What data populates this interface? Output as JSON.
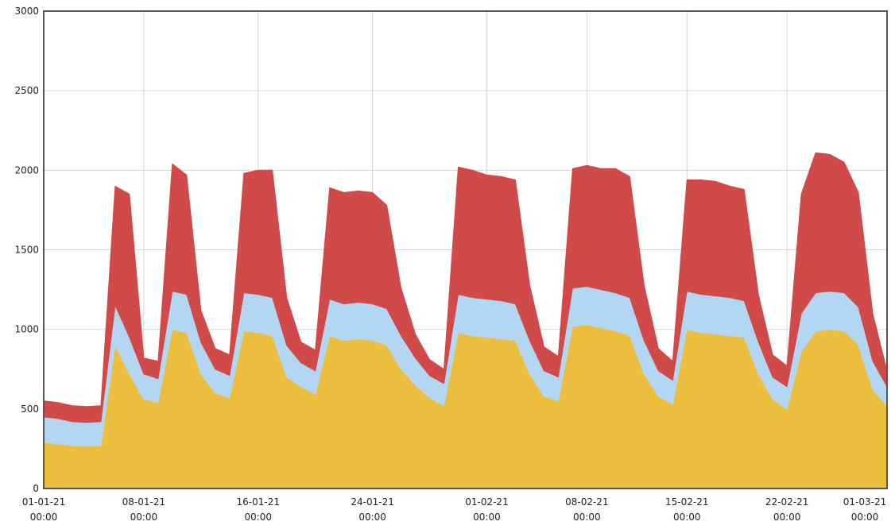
{
  "chart_data": {
    "type": "area",
    "stacked": true,
    "title": "",
    "xlabel": "",
    "ylabel": "",
    "ylim": [
      0,
      3000
    ],
    "yticks": [
      "0",
      "500",
      "1000",
      "1500",
      "2000",
      "2500",
      "3000"
    ],
    "xticks": [
      {
        "date": "01-01-21",
        "time": "00:00"
      },
      {
        "date": "08-01-21",
        "time": "00:00"
      },
      {
        "date": "16-01-21",
        "time": "00:00"
      },
      {
        "date": "24-01-21",
        "time": "00:00"
      },
      {
        "date": "01-02-21",
        "time": "00:00"
      },
      {
        "date": "08-02-21",
        "time": "00:00"
      },
      {
        "date": "15-02-21",
        "time": "00:00"
      },
      {
        "date": "22-02-21",
        "time": "00:00"
      },
      {
        "date": "01-03-21",
        "time": "00:00"
      }
    ],
    "grid": true,
    "x": [
      "01-01-21",
      "02-01-21",
      "03-01-21",
      "04-01-21",
      "05-01-21",
      "06-01-21",
      "07-01-21",
      "08-01-21",
      "09-01-21",
      "10-01-21",
      "11-01-21",
      "12-01-21",
      "13-01-21",
      "14-01-21",
      "15-01-21",
      "16-01-21",
      "17-01-21",
      "18-01-21",
      "19-01-21",
      "20-01-21",
      "21-01-21",
      "22-01-21",
      "23-01-21",
      "24-01-21",
      "25-01-21",
      "26-01-21",
      "27-01-21",
      "28-01-21",
      "29-01-21",
      "30-01-21",
      "31-01-21",
      "01-02-21",
      "02-02-21",
      "03-02-21",
      "04-02-21",
      "05-02-21",
      "06-02-21",
      "07-02-21",
      "08-02-21",
      "09-02-21",
      "10-02-21",
      "11-02-21",
      "12-02-21",
      "13-02-21",
      "14-02-21",
      "15-02-21",
      "16-02-21",
      "17-02-21",
      "18-02-21",
      "19-02-21",
      "20-02-21",
      "21-02-21",
      "22-02-21",
      "23-02-21",
      "24-02-21",
      "25-02-21",
      "26-02-21",
      "27-02-21",
      "28-02-21",
      "01-03-21"
    ],
    "series": [
      {
        "color": "#ebbe3e",
        "values": [
          290,
          280,
          270,
          265,
          270,
          900,
          720,
          560,
          540,
          1000,
          980,
          720,
          600,
          570,
          990,
          980,
          960,
          700,
          640,
          590,
          960,
          930,
          940,
          930,
          900,
          750,
          650,
          570,
          520,
          980,
          960,
          950,
          940,
          930,
          720,
          580,
          550,
          1020,
          1030,
          1010,
          990,
          960,
          720,
          580,
          530,
          1000,
          980,
          970,
          960,
          950,
          720,
          560,
          500,
          860,
          990,
          1000,
          990,
          900,
          620,
          520
        ]
      },
      {
        "color": "#b3d7f2",
        "values": [
          160,
          160,
          150,
          150,
          150,
          250,
          230,
          160,
          150,
          240,
          240,
          200,
          150,
          140,
          240,
          240,
          240,
          200,
          150,
          150,
          230,
          230,
          230,
          230,
          230,
          210,
          170,
          140,
          140,
          240,
          240,
          240,
          240,
          230,
          210,
          160,
          150,
          240,
          240,
          240,
          240,
          240,
          210,
          160,
          150,
          240,
          240,
          240,
          240,
          230,
          200,
          140,
          140,
          240,
          240,
          240,
          240,
          240,
          180,
          120
        ]
      },
      {
        "color": "#d04a4a",
        "values": [
          100,
          100,
          100,
          100,
          100,
          750,
          900,
          100,
          110,
          800,
          750,
          200,
          130,
          130,
          750,
          780,
          800,
          300,
          130,
          130,
          700,
          700,
          700,
          700,
          650,
          300,
          150,
          100,
          90,
          800,
          800,
          780,
          780,
          780,
          350,
          150,
          130,
          750,
          760,
          760,
          780,
          760,
          350,
          140,
          120,
          700,
          720,
          720,
          700,
          700,
          300,
          140,
          130,
          750,
          880,
          860,
          820,
          720,
          300,
          100
        ]
      }
    ]
  }
}
